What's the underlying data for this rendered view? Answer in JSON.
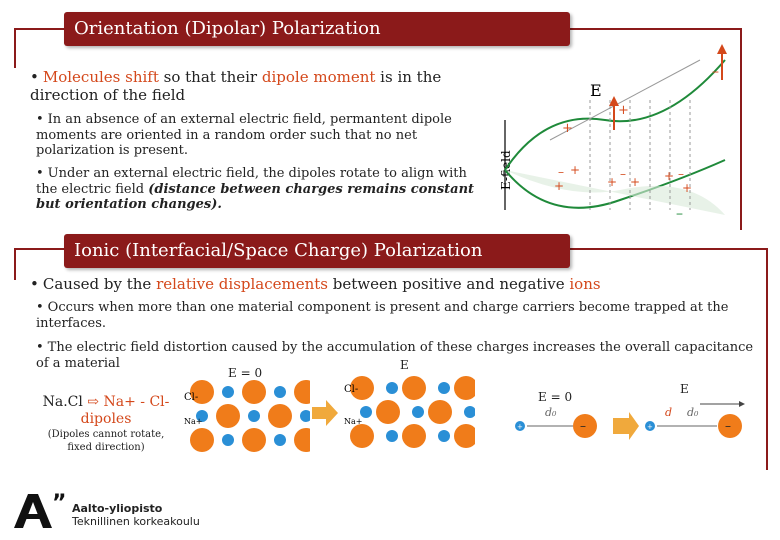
{
  "section1": {
    "title": "Orientation (Dipolar) Polarization",
    "bullet_prefix": "Molecules shift",
    "bullet_mid1": " so that their ",
    "bullet_hl": "dipole moment",
    "bullet_rest": " is in the direction of the field",
    "sub1": "In an absence of an external electric field, permantent dipole moments are oriented in a random order such that no net polarization is present.",
    "sub2_a": "Under an external electric field, the dipoles rotate to align with the electric field ",
    "sub2_b": "(distance between charges remains constant but orientation changes).",
    "diagram": {
      "e_label": "E",
      "efield_label": "E-field",
      "plus": "+",
      "minus": "–"
    }
  },
  "section2": {
    "title": "Ionic (Interfacial/Space Charge) Polarization",
    "bullet_a": "Caused by the ",
    "bullet_hl1": "relative displacements",
    "bullet_b": " between positive and negative ",
    "bullet_hl2": "ions",
    "sub1": "Occurs when more than one material component is present and charge carriers become trapped at the interfaces.",
    "sub2": "The electric field distortion caused by the accumulation of these charges increases the overall capacitance of a material",
    "nacl_a": "Na.Cl",
    "nacl_b": "Na+ - Cl-",
    "nacl_c": "dipoles",
    "nacl_note": "(Dipoles cannot rotate, fixed direction)",
    "e0_label": "E = 0",
    "e_label": "E",
    "cl_label": "Cl-",
    "na_label": "Na+",
    "d0_label": "d₀",
    "d_label": "d"
  },
  "logo": {
    "line1": "Aalto-yliopisto",
    "line2": "Teknillinen korkeakoulu"
  },
  "colors": {
    "accent": "#8b1a1a",
    "highlight": "#d4481b",
    "ion_orange": "#f07c1a",
    "ion_blue": "#2a8fd6"
  }
}
